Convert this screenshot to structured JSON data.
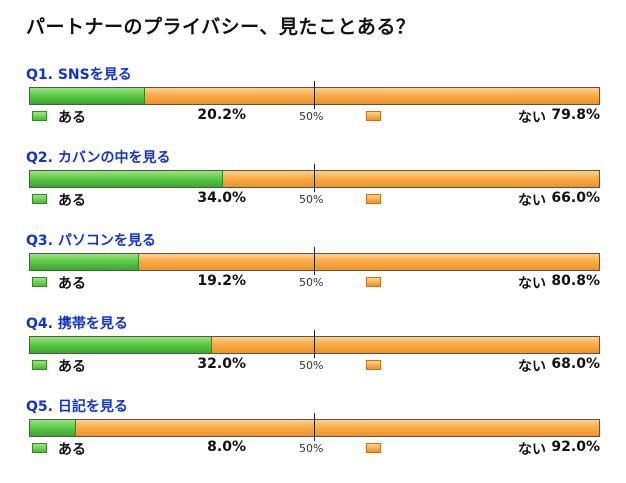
{
  "title": "パートナーのプライバシー、見たことある？",
  "legend": {
    "yes_label": "ある",
    "no_label": "ない",
    "midpoint_label": "50%"
  },
  "colors": {
    "yes": "#5fc94a",
    "no": "#f9ac4c",
    "question_label": "#1133cc"
  },
  "questions": [
    {
      "label": "Q1. SNSを見る",
      "yes_pct": "20.2%",
      "no_pct": "79.8%"
    },
    {
      "label": "Q2. カバンの中を見る",
      "yes_pct": "34.0%",
      "no_pct": "66.0%"
    },
    {
      "label": "Q3. パソコンを見る",
      "yes_pct": "19.2%",
      "no_pct": "80.8%"
    },
    {
      "label": "Q4. 携帯を見る",
      "yes_pct": "32.0%",
      "no_pct": "68.0%"
    },
    {
      "label": "Q5. 日記を見る",
      "yes_pct": "8.0%",
      "no_pct": "92.0%"
    }
  ],
  "chart_data": {
    "type": "bar",
    "orientation": "horizontal-stacked-100",
    "title": "パートナーのプライバシー、見たことある？",
    "categories": [
      "Q1. SNSを見る",
      "Q2. カバンの中を見る",
      "Q3. パソコンを見る",
      "Q4. 携帯を見る",
      "Q5. 日記を見る"
    ],
    "series": [
      {
        "name": "ある",
        "values": [
          20.2,
          34.0,
          19.2,
          32.0,
          8.0
        ]
      },
      {
        "name": "ない",
        "values": [
          79.8,
          66.0,
          80.8,
          68.0,
          92.0
        ]
      }
    ],
    "xlim": [
      0,
      100
    ],
    "reference_line": 50,
    "legend": "below-each-bar"
  }
}
